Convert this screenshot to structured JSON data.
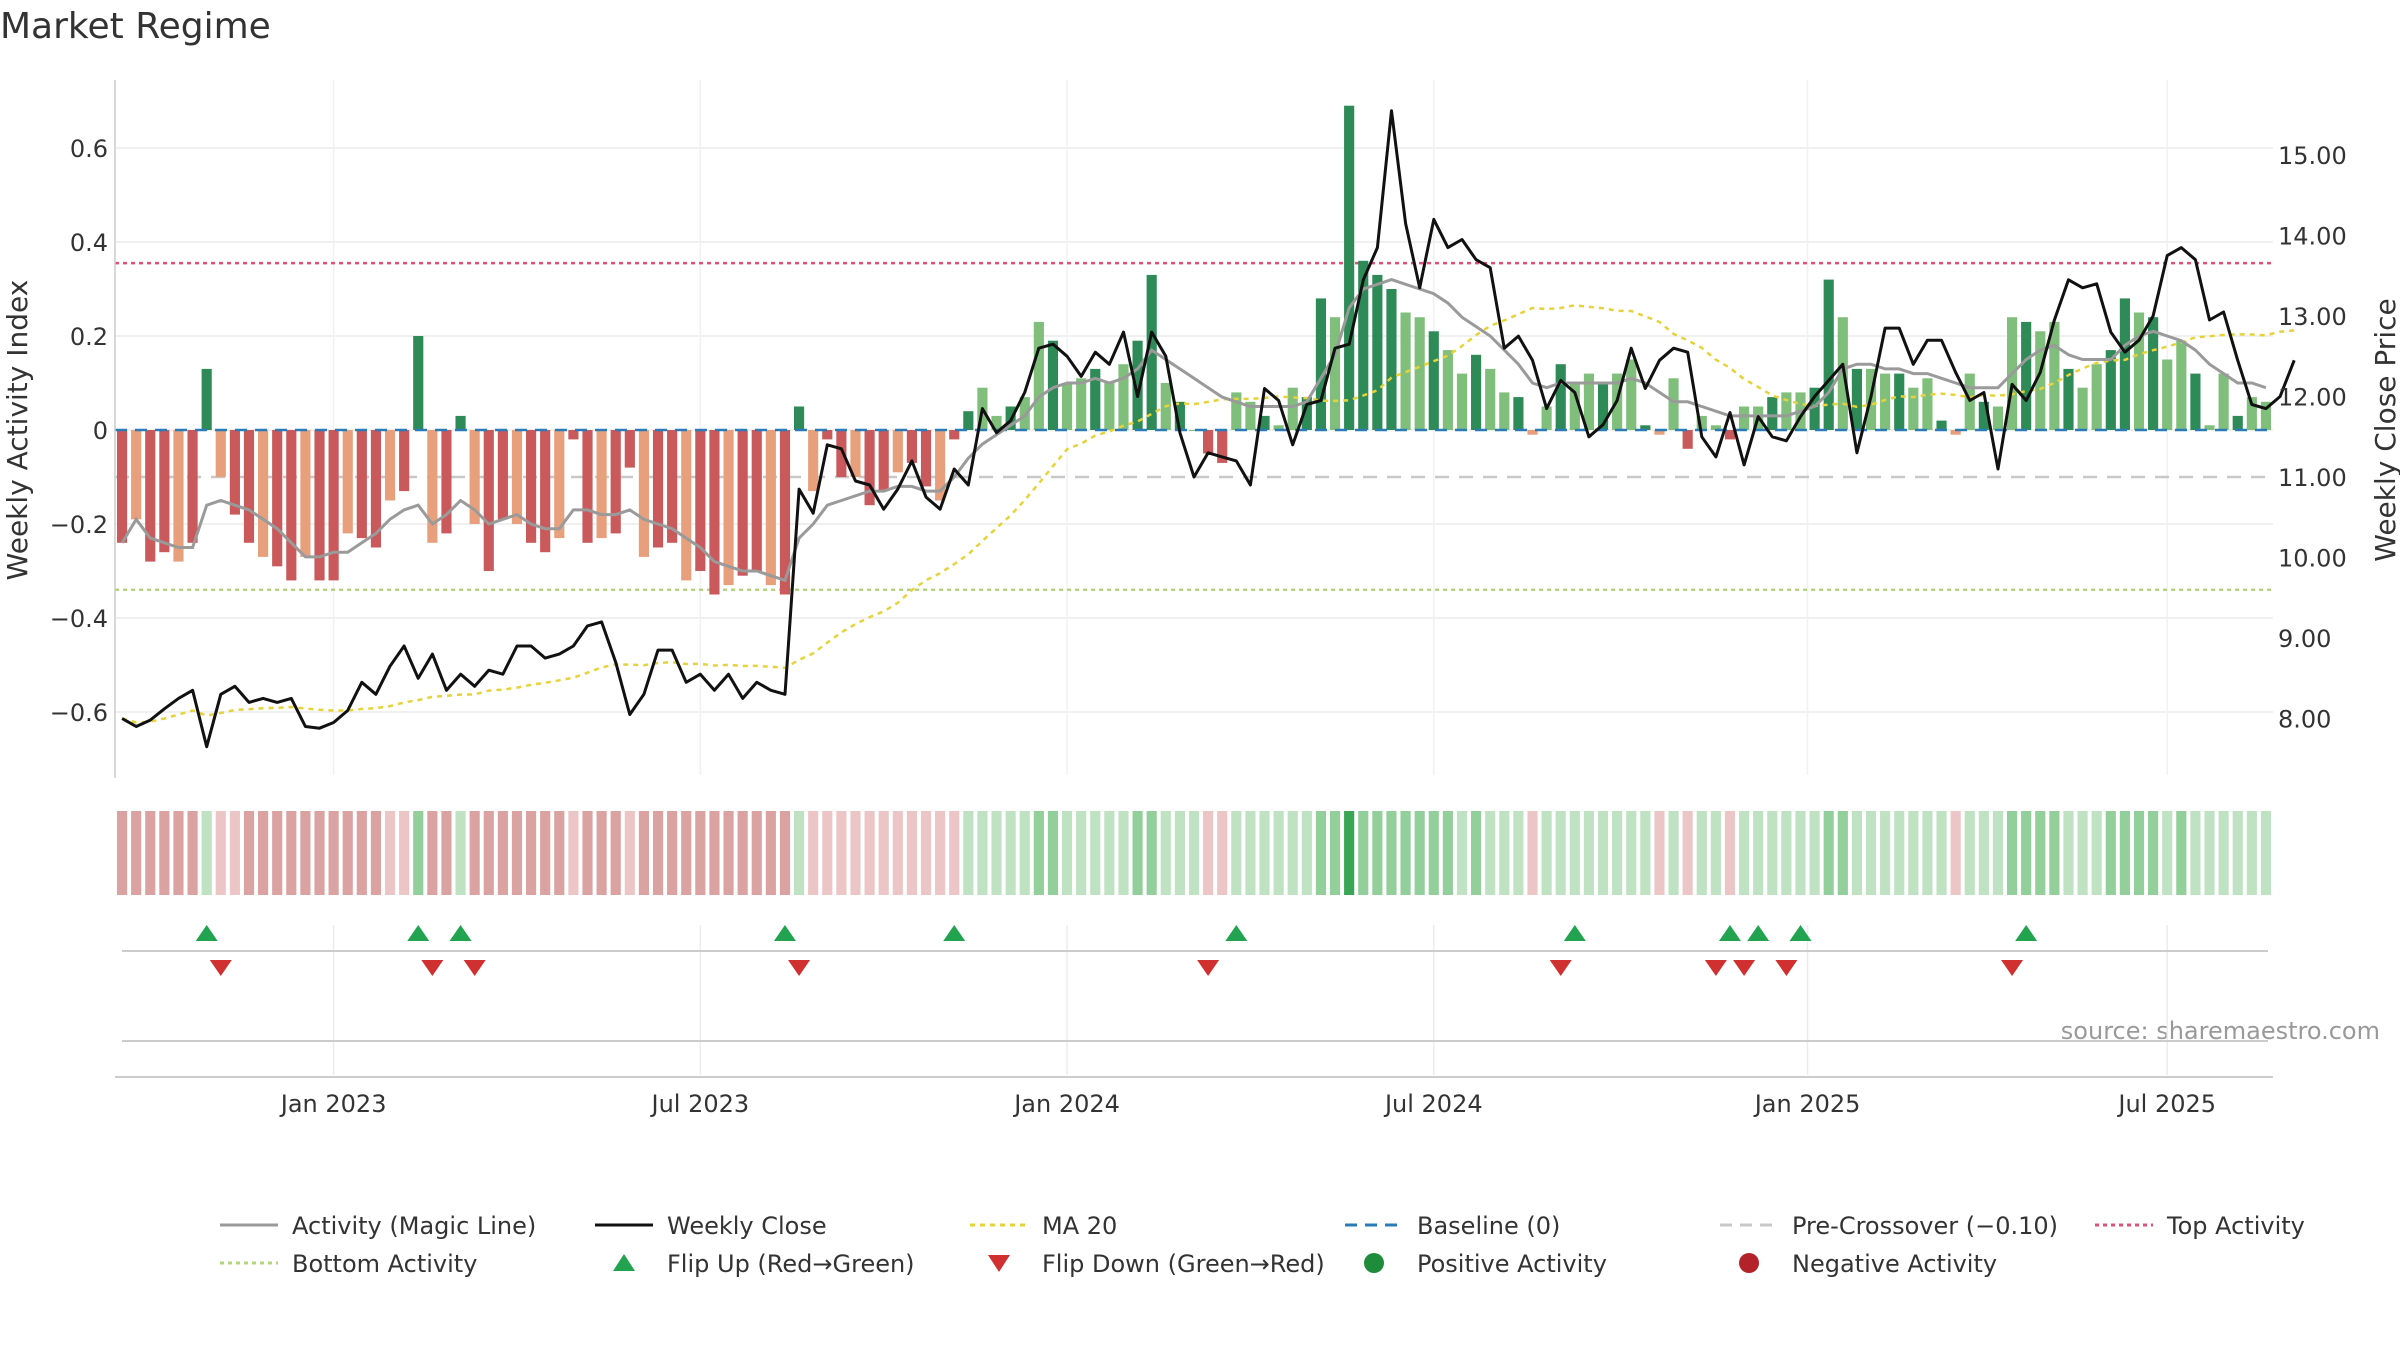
{
  "title": "Market Regime",
  "source": "source: sharemaestro.com",
  "chart_data": {
    "type": "bar",
    "title": "Market Regime",
    "y_left_label": "Weekly Activity Index",
    "y_right_label": "Weekly Close Price",
    "y_left_ticks": [
      {
        "v": 0.6,
        "label": "0.6"
      },
      {
        "v": 0.4,
        "label": "0.4"
      },
      {
        "v": 0.2,
        "label": "0.2"
      },
      {
        "v": 0,
        "label": "0"
      },
      {
        "v": -0.2,
        "label": "−0.2"
      },
      {
        "v": -0.4,
        "label": "−0.4"
      },
      {
        "v": -0.6,
        "label": "−0.6"
      }
    ],
    "y_left_range": [
      -0.74,
      0.74
    ],
    "y_right_ticks": [
      {
        "v": 15,
        "label": "15.00"
      },
      {
        "v": 14,
        "label": "14.00"
      },
      {
        "v": 13,
        "label": "13.00"
      },
      {
        "v": 12,
        "label": "12.00"
      },
      {
        "v": 11,
        "label": "11.00"
      },
      {
        "v": 10,
        "label": "10.00"
      },
      {
        "v": 9,
        "label": "9.00"
      },
      {
        "v": 8,
        "label": "8.00"
      }
    ],
    "y_right_range": [
      7.45,
      15.95
    ],
    "x_ticks": [
      {
        "label": "Jan 2023",
        "week": 15
      },
      {
        "label": "Jul 2023",
        "week": 41
      },
      {
        "label": "Jan 2024",
        "week": 67
      },
      {
        "label": "Jul 2024",
        "week": 93
      },
      {
        "label": "Jan 2025",
        "week": 119.5
      },
      {
        "label": "Jul 2025",
        "week": 145
      }
    ],
    "reference_lines": {
      "top_activity": 0.355,
      "bottom_activity": -0.34,
      "pre_crossover": -0.1,
      "baseline": 0
    },
    "activity": [
      -0.24,
      -0.19,
      -0.28,
      -0.26,
      -0.28,
      -0.24,
      0.13,
      -0.1,
      -0.18,
      -0.24,
      -0.27,
      -0.29,
      -0.32,
      -0.27,
      -0.32,
      -0.32,
      -0.22,
      -0.23,
      -0.25,
      -0.15,
      -0.13,
      0.2,
      -0.24,
      -0.22,
      0.03,
      -0.2,
      -0.3,
      -0.19,
      -0.2,
      -0.24,
      -0.26,
      -0.23,
      -0.02,
      -0.24,
      -0.23,
      -0.22,
      -0.08,
      -0.27,
      -0.25,
      -0.24,
      -0.32,
      -0.3,
      -0.35,
      -0.33,
      -0.31,
      -0.3,
      -0.33,
      -0.35,
      0.05,
      -0.13,
      -0.02,
      -0.1,
      -0.1,
      -0.16,
      -0.13,
      -0.09,
      -0.07,
      -0.12,
      -0.15,
      -0.02,
      0.04,
      0.09,
      0.03,
      0.05,
      0.07,
      0.23,
      0.19,
      0.1,
      0.11,
      0.13,
      0.1,
      0.14,
      0.19,
      0.33,
      0.1,
      0.06,
      0.0,
      -0.05,
      -0.07,
      0.08,
      0.06,
      0.03,
      0.01,
      0.09,
      0.07,
      0.28,
      0.24,
      0.69,
      0.36,
      0.33,
      0.3,
      0.25,
      0.24,
      0.21,
      0.17,
      0.12,
      0.16,
      0.13,
      0.08,
      0.07,
      -0.01,
      0.05,
      0.14,
      0.1,
      0.12,
      0.1,
      0.12,
      0.15,
      0.01,
      -0.01,
      0.11,
      -0.04,
      0.03,
      0.01,
      -0.02,
      0.05,
      0.05,
      0.07,
      0.08,
      0.08,
      0.09,
      0.32,
      0.24,
      0.13,
      0.13,
      0.12,
      0.12,
      0.09,
      0.11,
      0.02,
      -0.01,
      0.12,
      0.06,
      0.05,
      0.24,
      0.23,
      0.21,
      0.23,
      0.13,
      0.09,
      0.14,
      0.17,
      0.28,
      0.25,
      0.24,
      0.15,
      0.19,
      0.12,
      0.01,
      0.12,
      0.03,
      0.07,
      0.06
    ],
    "magic_line": [
      -0.24,
      -0.19,
      -0.23,
      -0.24,
      -0.25,
      -0.25,
      -0.16,
      -0.15,
      -0.16,
      -0.17,
      -0.19,
      -0.21,
      -0.24,
      -0.27,
      -0.27,
      -0.26,
      -0.26,
      -0.24,
      -0.22,
      -0.19,
      -0.17,
      -0.16,
      -0.2,
      -0.18,
      -0.15,
      -0.17,
      -0.2,
      -0.19,
      -0.18,
      -0.2,
      -0.21,
      -0.21,
      -0.17,
      -0.17,
      -0.18,
      -0.18,
      -0.17,
      -0.19,
      -0.2,
      -0.21,
      -0.23,
      -0.25,
      -0.28,
      -0.29,
      -0.3,
      -0.3,
      -0.31,
      -0.32,
      -0.23,
      -0.2,
      -0.16,
      -0.15,
      -0.14,
      -0.13,
      -0.13,
      -0.12,
      -0.12,
      -0.13,
      -0.13,
      -0.1,
      -0.06,
      -0.03,
      -0.01,
      0.01,
      0.03,
      0.07,
      0.09,
      0.1,
      0.1,
      0.11,
      0.1,
      0.11,
      0.13,
      0.17,
      0.15,
      0.13,
      0.11,
      0.09,
      0.07,
      0.06,
      0.05,
      0.05,
      0.05,
      0.05,
      0.06,
      0.11,
      0.16,
      0.26,
      0.3,
      0.31,
      0.32,
      0.31,
      0.3,
      0.29,
      0.27,
      0.24,
      0.22,
      0.2,
      0.17,
      0.14,
      0.1,
      0.09,
      0.1,
      0.1,
      0.1,
      0.1,
      0.1,
      0.11,
      0.1,
      0.08,
      0.06,
      0.06,
      0.05,
      0.04,
      0.03,
      0.03,
      0.03,
      0.03,
      0.03,
      0.04,
      0.05,
      0.08,
      0.13,
      0.14,
      0.14,
      0.13,
      0.13,
      0.12,
      0.12,
      0.11,
      0.1,
      0.09,
      0.09,
      0.09,
      0.12,
      0.15,
      0.17,
      0.18,
      0.16,
      0.15,
      0.15,
      0.15,
      0.18,
      0.2,
      0.21,
      0.2,
      0.19,
      0.17,
      0.14,
      0.12,
      0.1,
      0.1,
      0.09
    ],
    "weekly_close": [
      8.0,
      7.9,
      7.98,
      8.12,
      8.25,
      8.35,
      7.65,
      8.3,
      8.4,
      8.2,
      8.25,
      8.2,
      8.25,
      7.9,
      7.88,
      7.95,
      8.1,
      8.45,
      8.3,
      8.65,
      8.9,
      8.5,
      8.8,
      8.35,
      8.55,
      8.4,
      8.6,
      8.55,
      8.9,
      8.9,
      8.75,
      8.8,
      8.9,
      9.15,
      9.2,
      8.7,
      8.05,
      8.3,
      8.85,
      8.85,
      8.45,
      8.55,
      8.35,
      8.55,
      8.25,
      8.45,
      8.35,
      8.3,
      10.85,
      10.55,
      11.4,
      11.35,
      10.95,
      10.9,
      10.6,
      10.85,
      11.2,
      10.75,
      10.6,
      11.1,
      10.9,
      11.85,
      11.55,
      11.7,
      12.05,
      12.6,
      12.65,
      12.5,
      12.25,
      12.55,
      12.4,
      12.8,
      12.0,
      12.8,
      12.5,
      11.55,
      11.0,
      11.3,
      11.25,
      11.2,
      10.9,
      12.1,
      11.95,
      11.4,
      11.9,
      11.95,
      12.6,
      12.65,
      13.45,
      13.85,
      15.55,
      14.15,
      13.35,
      14.2,
      13.85,
      13.95,
      13.7,
      13.6,
      12.6,
      12.75,
      12.45,
      11.85,
      12.2,
      12.05,
      11.5,
      11.65,
      11.95,
      12.6,
      12.1,
      12.45,
      12.6,
      12.55,
      11.5,
      11.25,
      11.8,
      11.15,
      11.75,
      11.5,
      11.45,
      11.75,
      12.0,
      12.2,
      12.4,
      11.3,
      12.0,
      12.85,
      12.85,
      12.4,
      12.7,
      12.7,
      12.3,
      11.95,
      12.05,
      11.1,
      12.15,
      11.95,
      12.3,
      12.95,
      13.45,
      13.35,
      13.4,
      12.8,
      12.55,
      12.7,
      13.0,
      13.75,
      13.85,
      13.7,
      12.95,
      13.05,
      12.45,
      11.9,
      11.85,
      12.0,
      12.45
    ]
  },
  "flips": {
    "up_weeks": [
      6,
      21,
      24,
      47,
      59,
      79,
      103,
      114,
      116,
      119,
      135
    ],
    "down_weeks": [
      7,
      22,
      25,
      48,
      77,
      102,
      113,
      115,
      118,
      134
    ]
  },
  "colors": {
    "bar_pos_dark": "#2e8b57",
    "bar_pos_light": "#7fbf7b",
    "bar_neg_dark": "#c9595b",
    "bar_neg_light": "#e8a07c",
    "magic_line": "#9a9a9a",
    "weekly_close": "#111111",
    "ma20": "#e6d33a",
    "baseline": "#2b7bb9",
    "pre_crossover": "#c8c8c8",
    "top_activity": "#e0507a",
    "bottom_activity": "#b2d67e",
    "flip_up": "#22a350",
    "flip_down": "#d0302f",
    "positive_activity": "#1e8c3a",
    "negative_activity": "#b22228"
  },
  "legend": [
    {
      "label": "Activity (Magic Line)",
      "kind": "line",
      "color": "#9a9a9a",
      "dash": ""
    },
    {
      "label": "Weekly Close",
      "kind": "line",
      "color": "#111111",
      "dash": ""
    },
    {
      "label": "MA 20",
      "kind": "line",
      "color": "#e6d33a",
      "dash": "5,5"
    },
    {
      "label": "Baseline (0)",
      "kind": "line",
      "color": "#2b7bb9",
      "dash": "12,8"
    },
    {
      "label": "Pre-Crossover (−0.10)",
      "kind": "line",
      "color": "#c8c8c8",
      "dash": "12,8"
    },
    {
      "label": "Top Activity",
      "kind": "line",
      "color": "#e0507a",
      "dash": "4,4"
    },
    {
      "label": "Bottom Activity",
      "kind": "line",
      "color": "#b2d67e",
      "dash": "4,4"
    },
    {
      "label": "Flip Up (Red→Green)",
      "kind": "tri-up",
      "color": "#22a350",
      "dash": ""
    },
    {
      "label": "Flip Down (Green→Red)",
      "kind": "tri-down",
      "color": "#d0302f",
      "dash": ""
    },
    {
      "label": "Positive Activity",
      "kind": "dot",
      "color": "#1e8c3a",
      "dash": ""
    },
    {
      "label": "Negative Activity",
      "kind": "dot",
      "color": "#b22228",
      "dash": ""
    }
  ]
}
